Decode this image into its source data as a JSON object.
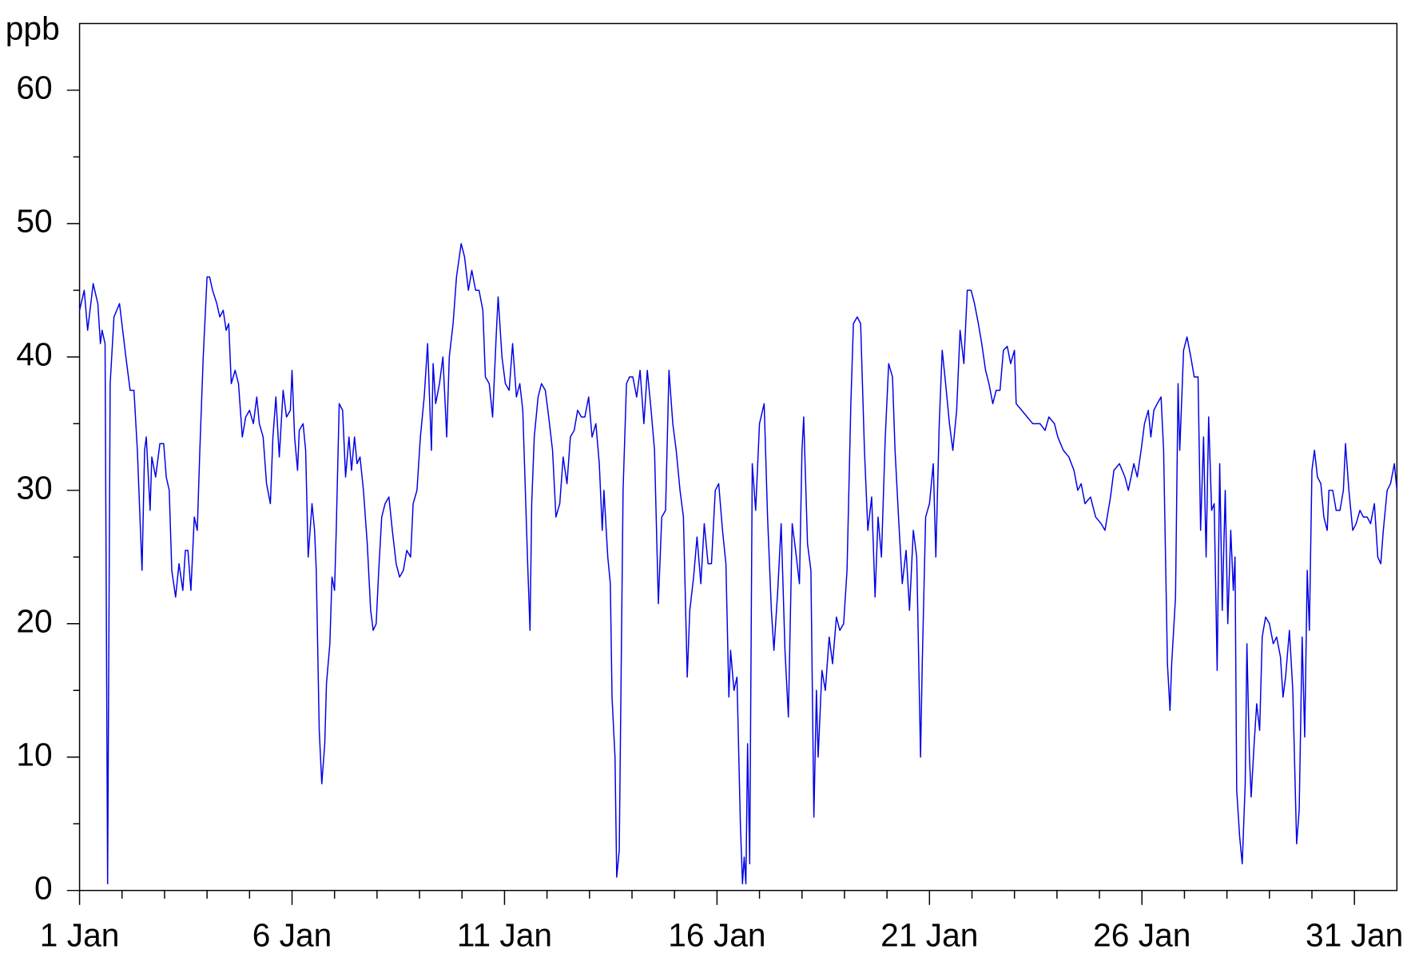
{
  "chart_data": {
    "type": "line",
    "y_unit_label": "ppb",
    "xlim": [
      1,
      32
    ],
    "ylim": [
      0,
      65
    ],
    "xticks": [
      {
        "value": 1,
        "label": "1 Jan"
      },
      {
        "value": 6,
        "label": "6 Jan"
      },
      {
        "value": 11,
        "label": "11 Jan"
      },
      {
        "value": 16,
        "label": "16 Jan"
      },
      {
        "value": 21,
        "label": "21 Jan"
      },
      {
        "value": 26,
        "label": "26 Jan"
      },
      {
        "value": 31,
        "label": "31 Jan"
      }
    ],
    "xticks_minor": [
      2,
      3,
      4,
      5,
      7,
      8,
      9,
      10,
      12,
      13,
      14,
      15,
      17,
      18,
      19,
      20,
      22,
      23,
      24,
      25,
      27,
      28,
      29,
      30
    ],
    "yticks": [
      0,
      10,
      20,
      30,
      40,
      50,
      60
    ],
    "yticks_minor": [
      5,
      15,
      25,
      35,
      45,
      55
    ],
    "series": [
      {
        "color": "#0000e6",
        "x": [
          1.0,
          1.11,
          1.19,
          1.32,
          1.43,
          1.49,
          1.53,
          1.6,
          1.66,
          1.72,
          1.81,
          1.94,
          2.09,
          2.19,
          2.28,
          2.36,
          2.47,
          2.53,
          2.57,
          2.66,
          2.7,
          2.79,
          2.89,
          2.98,
          3.04,
          3.11,
          3.17,
          3.26,
          3.34,
          3.43,
          3.49,
          3.55,
          3.62,
          3.7,
          3.77,
          3.83,
          3.91,
          4.0,
          4.06,
          4.13,
          4.23,
          4.3,
          4.38,
          4.45,
          4.51,
          4.57,
          4.66,
          4.74,
          4.83,
          4.91,
          5.0,
          5.09,
          5.17,
          5.23,
          5.32,
          5.4,
          5.49,
          5.55,
          5.62,
          5.7,
          5.79,
          5.87,
          5.96,
          6.0,
          6.06,
          6.13,
          6.17,
          6.26,
          6.32,
          6.38,
          6.47,
          6.53,
          6.57,
          6.64,
          6.7,
          6.77,
          6.81,
          6.89,
          6.94,
          7.0,
          7.04,
          7.11,
          7.19,
          7.26,
          7.34,
          7.4,
          7.47,
          7.53,
          7.6,
          7.68,
          7.77,
          7.85,
          7.91,
          7.98,
          8.04,
          8.11,
          8.19,
          8.28,
          8.36,
          8.45,
          8.53,
          8.62,
          8.7,
          8.79,
          8.85,
          8.94,
          9.02,
          9.11,
          9.19,
          9.28,
          9.32,
          9.38,
          9.47,
          9.55,
          9.64,
          9.7,
          9.79,
          9.87,
          9.98,
          10.06,
          10.15,
          10.23,
          10.32,
          10.4,
          10.49,
          10.55,
          10.64,
          10.72,
          10.81,
          10.85,
          10.94,
          11.02,
          11.11,
          11.19,
          11.28,
          11.36,
          11.43,
          11.49,
          11.55,
          11.6,
          11.64,
          11.7,
          11.79,
          11.87,
          11.96,
          12.04,
          12.13,
          12.21,
          12.3,
          12.38,
          12.47,
          12.55,
          12.64,
          12.72,
          12.81,
          12.89,
          12.98,
          13.06,
          13.15,
          13.23,
          13.3,
          13.34,
          13.43,
          13.49,
          13.53,
          13.6,
          13.64,
          13.7,
          13.79,
          13.87,
          13.94,
          14.02,
          14.11,
          14.19,
          14.28,
          14.36,
          14.45,
          14.53,
          14.62,
          14.7,
          14.79,
          14.87,
          14.96,
          15.04,
          15.13,
          15.21,
          15.3,
          15.36,
          15.45,
          15.53,
          15.62,
          15.7,
          15.79,
          15.87,
          15.96,
          16.04,
          16.13,
          16.21,
          16.28,
          16.32,
          16.4,
          16.47,
          16.55,
          16.6,
          16.64,
          16.68,
          16.72,
          16.77,
          16.83,
          16.91,
          17.0,
          17.11,
          17.19,
          17.28,
          17.34,
          17.43,
          17.51,
          17.6,
          17.68,
          17.77,
          17.85,
          17.94,
          18.0,
          18.04,
          18.13,
          18.21,
          18.28,
          18.34,
          18.38,
          18.47,
          18.55,
          18.64,
          18.72,
          18.81,
          18.89,
          18.98,
          19.06,
          19.15,
          19.21,
          19.3,
          19.38,
          19.47,
          19.55,
          19.64,
          19.72,
          19.79,
          19.87,
          19.96,
          20.04,
          20.13,
          20.19,
          20.28,
          20.36,
          20.45,
          20.53,
          20.62,
          20.7,
          20.79,
          20.83,
          20.91,
          21.0,
          21.09,
          21.15,
          21.23,
          21.3,
          21.38,
          21.47,
          21.55,
          21.64,
          21.72,
          21.81,
          21.89,
          21.98,
          22.06,
          22.15,
          22.23,
          22.32,
          22.4,
          22.49,
          22.57,
          22.66,
          22.74,
          22.83,
          22.91,
          23.0,
          23.04,
          23.17,
          23.3,
          23.43,
          23.6,
          23.72,
          23.81,
          23.94,
          24.02,
          24.15,
          24.28,
          24.4,
          24.49,
          24.57,
          24.66,
          24.79,
          24.91,
          25.04,
          25.13,
          25.26,
          25.34,
          25.47,
          25.6,
          25.68,
          25.81,
          25.89,
          25.98,
          26.06,
          26.15,
          26.21,
          26.28,
          26.36,
          26.45,
          26.51,
          26.6,
          26.66,
          26.7,
          26.79,
          26.85,
          26.89,
          26.98,
          27.06,
          27.15,
          27.23,
          27.32,
          27.38,
          27.45,
          27.51,
          27.57,
          27.64,
          27.7,
          27.77,
          27.83,
          27.89,
          27.96,
          28.02,
          28.09,
          28.15,
          28.19,
          28.23,
          28.3,
          28.36,
          28.43,
          28.47,
          28.53,
          28.57,
          28.64,
          28.7,
          28.77,
          28.83,
          28.91,
          29.0,
          29.09,
          29.17,
          29.26,
          29.32,
          29.38,
          29.47,
          29.55,
          29.64,
          29.7,
          29.77,
          29.83,
          29.89,
          29.94,
          30.0,
          30.06,
          30.13,
          30.21,
          30.28,
          30.36,
          30.4,
          30.49,
          30.57,
          30.66,
          30.74,
          30.79,
          30.87,
          30.96,
          31.04,
          31.13,
          31.21,
          31.3,
          31.38,
          31.47,
          31.55,
          31.62,
          31.68,
          31.77,
          31.85,
          31.94,
          32.0
        ],
        "values": [
          43.5,
          45,
          42,
          45.5,
          44,
          41,
          42,
          41,
          0.5,
          38,
          43,
          44,
          40,
          37.5,
          37.5,
          33,
          24,
          33,
          34,
          28.5,
          32.5,
          31,
          33.5,
          33.5,
          31,
          30,
          24,
          22,
          24.5,
          22.5,
          25.5,
          25.5,
          22.5,
          28,
          27,
          33,
          40,
          46,
          46,
          45,
          44,
          43,
          43.5,
          42,
          42.5,
          38,
          39,
          38,
          34,
          35.5,
          36,
          35,
          37,
          35,
          34,
          30.5,
          29,
          34,
          37,
          32.5,
          37.5,
          35.5,
          36,
          39,
          34,
          31.5,
          34.5,
          35,
          33,
          25,
          29,
          27,
          24,
          12,
          8,
          11,
          15.5,
          18.5,
          23.5,
          22.5,
          27,
          36.5,
          36,
          31,
          34,
          31.5,
          34,
          32,
          32.5,
          30,
          26,
          21,
          19.5,
          20,
          24,
          28,
          29,
          29.5,
          27,
          24.5,
          23.5,
          24,
          25.5,
          25,
          29,
          30,
          34,
          37,
          41,
          33,
          39.5,
          36.5,
          38,
          40,
          34,
          40,
          42.5,
          46,
          48.5,
          47.5,
          45,
          46.5,
          45,
          45,
          43.5,
          38.5,
          38,
          35.5,
          42,
          44.5,
          40,
          38,
          37.5,
          41,
          37,
          38,
          36,
          30,
          24,
          19.5,
          29,
          34,
          37,
          38,
          37.5,
          35.5,
          33,
          28,
          29,
          32.5,
          30.5,
          34,
          34.5,
          36,
          35.5,
          35.5,
          37,
          34,
          35,
          32,
          27,
          30,
          25,
          23,
          14.5,
          10,
          1,
          3,
          30,
          38,
          38.5,
          38.5,
          37,
          39,
          35,
          39,
          36,
          33,
          21.5,
          28,
          28.5,
          39,
          35,
          33,
          30,
          28,
          16,
          21,
          23.5,
          26.5,
          23,
          27.5,
          24.5,
          24.5,
          30,
          30.5,
          27,
          24.5,
          14.5,
          18,
          15,
          16,
          5,
          0.5,
          2.5,
          0.5,
          11,
          2,
          32,
          28.5,
          35,
          36.5,
          28,
          21,
          18,
          22.5,
          27.5,
          18,
          13,
          27.5,
          25.5,
          23,
          33,
          35.5,
          26,
          24,
          5.5,
          15,
          10,
          16.5,
          15,
          19,
          17,
          20.5,
          19.5,
          20,
          24,
          36.5,
          42.5,
          43,
          42.5,
          33,
          27,
          29.5,
          22,
          28,
          25,
          34,
          39.5,
          38.5,
          33,
          27.5,
          23,
          25.5,
          21,
          27,
          25,
          10,
          17,
          28,
          29,
          32,
          25,
          35,
          40.5,
          38,
          35,
          33,
          36,
          42,
          39.5,
          45,
          45,
          44,
          42.5,
          41,
          39,
          38,
          36.5,
          37.5,
          37.5,
          40.5,
          40.8,
          39.5,
          40.5,
          36.5,
          36,
          35.5,
          35,
          35,
          34.5,
          35.5,
          35,
          34,
          33,
          32.5,
          31.5,
          30,
          30.5,
          29,
          29.5,
          28,
          27.5,
          27,
          29.5,
          31.5,
          32,
          31,
          30,
          32,
          31,
          33,
          35,
          36,
          34,
          36,
          36.5,
          37,
          33,
          17,
          13.5,
          17,
          22,
          38,
          33,
          40.5,
          41.5,
          40,
          38.5,
          38.5,
          27,
          34,
          25,
          35.5,
          28.5,
          29,
          16.5,
          32,
          21,
          30,
          20,
          27,
          22.5,
          25,
          7.5,
          4,
          2,
          8,
          18.5,
          10,
          7,
          11,
          14,
          12,
          19,
          20.5,
          20,
          18.5,
          19,
          17.5,
          14.5,
          16,
          19.5,
          15,
          3.5,
          6,
          19,
          11.5,
          24,
          19.5,
          31.5,
          33,
          31,
          30.5,
          28,
          27,
          30,
          30,
          28.5,
          28.5,
          30,
          33.5,
          30,
          27,
          27.5,
          28.5,
          28,
          28,
          27.5,
          29,
          25,
          24.5,
          27,
          30,
          30.5,
          32,
          30
        ]
      }
    ]
  }
}
